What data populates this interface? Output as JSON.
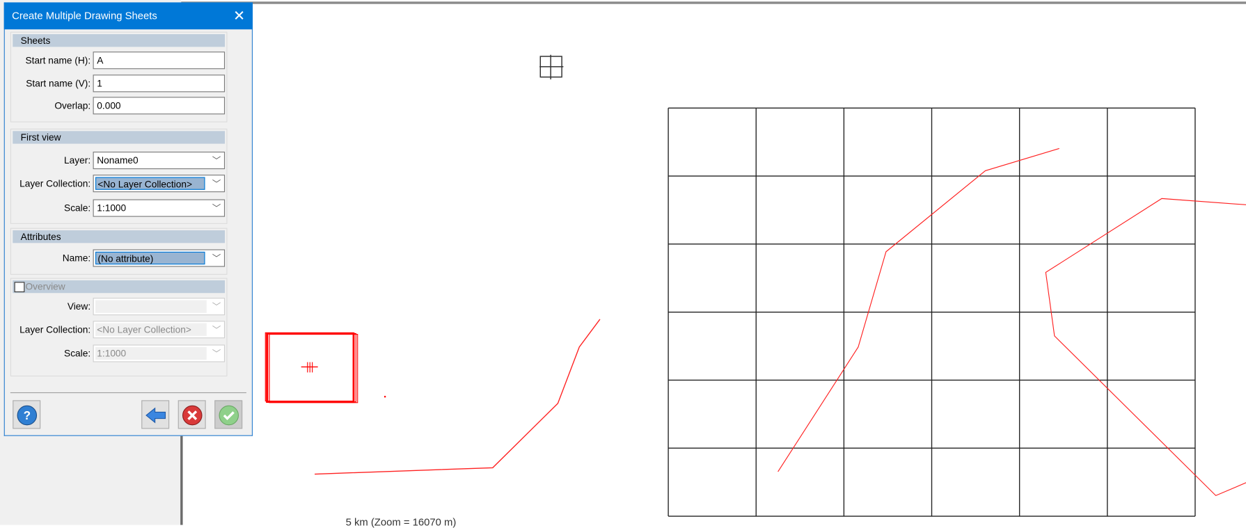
{
  "dialog": {
    "title": "Create Multiple Drawing Sheets",
    "close_icon": "close-icon",
    "sheets": {
      "header": "Sheets",
      "start_h_label": "Start name (H):",
      "start_h_value": "A",
      "start_v_label": "Start name (V):",
      "start_v_value": "1",
      "overlap_label": "Overlap:",
      "overlap_value": "0.000"
    },
    "first_view": {
      "header": "First view",
      "layer_label": "Layer:",
      "layer_value": "Noname0",
      "collection_label": "Layer Collection:",
      "collection_value": "<No Layer Collection>",
      "scale_label": "Scale:",
      "scale_value": "1:1000"
    },
    "attributes": {
      "header": "Attributes",
      "name_label": "Name:",
      "name_value": "(No attribute)"
    },
    "overview": {
      "header": "Overview",
      "checked": false,
      "view_label": "View:",
      "view_value": "",
      "collection_label": "Layer Collection:",
      "collection_value": "<No Layer Collection>",
      "scale_label": "Scale:",
      "scale_value": "1:1000"
    },
    "buttons": {
      "help_icon": "help-icon",
      "back_icon": "arrow-left-icon",
      "cancel_icon": "cancel-icon",
      "ok_icon": "checkmark-icon"
    }
  },
  "map": {
    "scale_bar_text": "5 km (Zoom = 16070 m)",
    "sheet_grid": {
      "columns": 6,
      "rows": 6
    },
    "colors": {
      "accent": "#0078d7",
      "line": "#ff0000",
      "grid": "#222222"
    }
  }
}
